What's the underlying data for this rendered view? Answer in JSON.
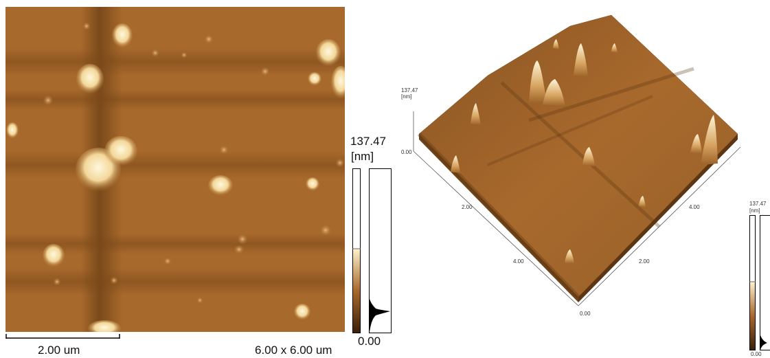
{
  "left_panel": {
    "scale_bar_label": "2.00 um",
    "scan_size_label": "6.00 x 6.00 um",
    "color_scale": {
      "max_value": "137.47",
      "unit": "[nm]",
      "min_value": "0.00"
    }
  },
  "right_panel": {
    "z_axis": {
      "max_value": "137.47",
      "unit": "[nm]",
      "min_value": "0.00"
    },
    "axis_ticks": {
      "left_edge": [
        "2.00",
        "4.00"
      ],
      "right_edge": [
        "2.00",
        "4.00"
      ],
      "corner": "0.00"
    },
    "color_scale": {
      "max_value": "137.47",
      "unit": "[nm]",
      "min_value": "0.00"
    }
  },
  "colors": {
    "surface_base": "#a8692c",
    "surface_dark": "#6f4317",
    "feature_highlight": "#fff3cf",
    "outline": "#000000"
  }
}
